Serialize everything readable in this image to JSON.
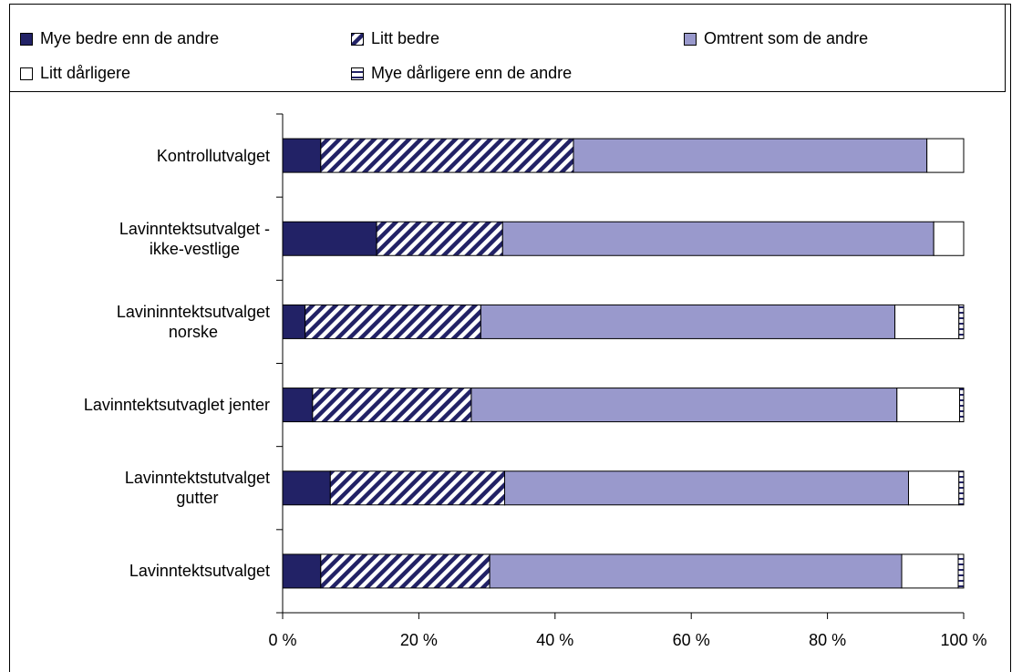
{
  "chart_data": {
    "type": "stacked-barh",
    "categories": [
      "Kontrollutvalget",
      "Lavinntektsutvalget -\nikke-vestlige",
      "Lavininntektsutvalget\nnorske",
      "Lavinntektsutvaglet jenter",
      "Lavinntektstutvalget\ngutter",
      "Lavinntektsutvalget"
    ],
    "series": [
      {
        "name": "Mye bedre enn de andre",
        "color": "#222266",
        "pattern": "solid",
        "values": [
          5.6,
          13.8,
          3.3,
          4.4,
          7.0,
          5.6
        ]
      },
      {
        "name": "Litt bedre",
        "color": "#222266",
        "pattern": "diagonal",
        "values": [
          37.1,
          18.5,
          25.8,
          23.3,
          25.6,
          24.8
        ]
      },
      {
        "name": "Omtrent som de andre",
        "color": "#9999cc",
        "pattern": "solid",
        "values": [
          51.9,
          63.3,
          60.8,
          62.5,
          59.3,
          60.5
        ]
      },
      {
        "name": "Litt dårligere",
        "color": "#ffffff",
        "pattern": "solid",
        "values": [
          5.4,
          4.4,
          9.4,
          9.2,
          7.4,
          8.3
        ]
      },
      {
        "name": "Mye dårligere enn de andre",
        "color": "#222266",
        "pattern": "horizontal",
        "values": [
          0,
          0,
          0.7,
          0.6,
          0.7,
          0.8
        ]
      }
    ],
    "xlim": [
      0,
      100
    ],
    "xticks": [
      {
        "value": 0,
        "label": "0 %"
      },
      {
        "value": 20,
        "label": "20 %"
      },
      {
        "value": 40,
        "label": "40 %"
      },
      {
        "value": 60,
        "label": "60 %"
      },
      {
        "value": 80,
        "label": "80 %"
      },
      {
        "value": 100,
        "label": "100 %"
      }
    ],
    "legend": "top"
  }
}
